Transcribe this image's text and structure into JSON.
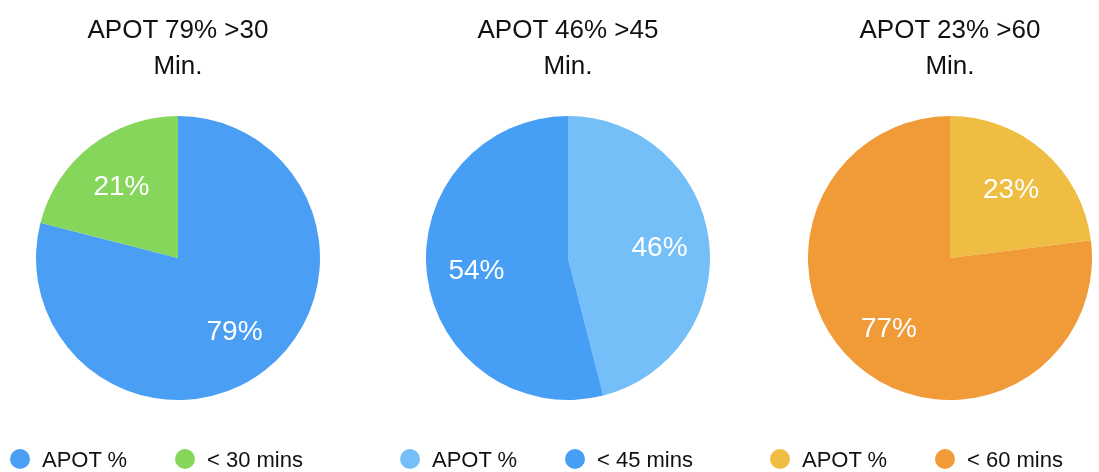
{
  "chart_data": [
    {
      "type": "pie",
      "title": "APOT 79% >30 Min.",
      "categories": [
        "APOT %",
        "< 30 mins"
      ],
      "values": [
        79,
        21
      ],
      "colors": [
        "#4a9ff5",
        "#85d65a"
      ],
      "value_labels": [
        "79%",
        "21%"
      ],
      "legend": "bottom"
    },
    {
      "type": "pie",
      "title": "APOT 46% >45 Min.",
      "categories": [
        "APOT %",
        "< 45 mins"
      ],
      "values": [
        46,
        54
      ],
      "colors": [
        "#74bff8",
        "#479ff5"
      ],
      "value_labels": [
        "46%",
        "54%"
      ],
      "legend": "bottom"
    },
    {
      "type": "pie",
      "title": "APOT 23% >60 Min.",
      "categories": [
        "APOT %",
        "< 60 mins"
      ],
      "values": [
        23,
        77
      ],
      "colors": [
        "#efbd42",
        "#f09b38"
      ],
      "value_labels": [
        "23%",
        "77%"
      ],
      "legend": "bottom"
    }
  ]
}
